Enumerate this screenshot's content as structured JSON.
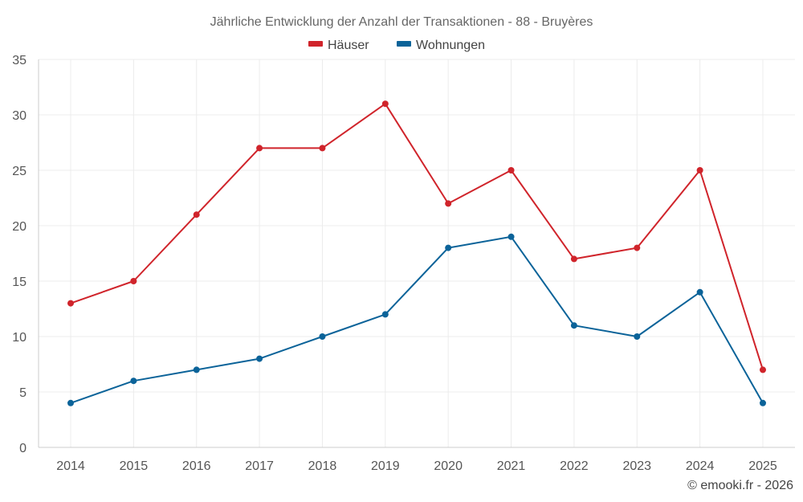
{
  "chart_data": {
    "type": "line",
    "title": "Jährliche Entwicklung der Anzahl der Transaktionen - 88 - Bruyères",
    "categories": [
      "2014",
      "2015",
      "2016",
      "2017",
      "2018",
      "2019",
      "2020",
      "2021",
      "2022",
      "2023",
      "2024",
      "2025"
    ],
    "series": [
      {
        "name": "Häuser",
        "color": "#d0242b",
        "values": [
          13,
          15,
          21,
          27,
          27,
          31,
          22,
          25,
          17,
          18,
          25,
          7
        ]
      },
      {
        "name": "Wohnungen",
        "color": "#0b6399",
        "values": [
          4,
          6,
          7,
          8,
          10,
          12,
          18,
          19,
          11,
          10,
          14,
          4
        ]
      }
    ],
    "ylim": [
      0,
      35
    ],
    "yticks": [
      0,
      5,
      10,
      15,
      20,
      25,
      30,
      35
    ],
    "grid": true,
    "legend": "top-center",
    "xlabel": "",
    "ylabel": ""
  },
  "credit": "© emooki.fr - 2026"
}
